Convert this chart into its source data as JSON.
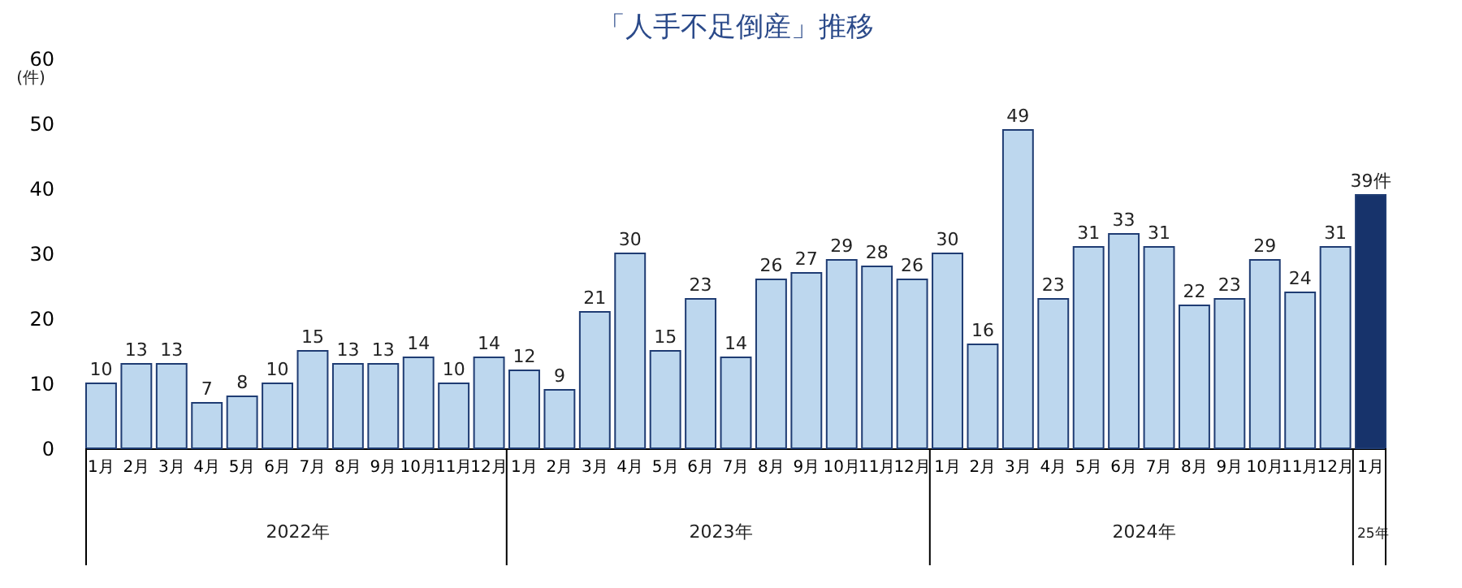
{
  "chart_data": {
    "type": "bar",
    "title": "「人手不足倒産」推移",
    "ylabel": "(件)",
    "categories": [
      "1月",
      "2月",
      "3月",
      "4月",
      "5月",
      "6月",
      "7月",
      "8月",
      "9月",
      "10月",
      "11月",
      "12月",
      "1月",
      "2月",
      "3月",
      "4月",
      "5月",
      "6月",
      "7月",
      "8月",
      "9月",
      "10月",
      "11月",
      "12月",
      "1月",
      "2月",
      "3月",
      "4月",
      "5月",
      "6月",
      "7月",
      "8月",
      "9月",
      "10月",
      "11月",
      "12月",
      "1月"
    ],
    "values": [
      10,
      13,
      13,
      7,
      8,
      10,
      15,
      13,
      13,
      14,
      10,
      14,
      12,
      9,
      21,
      30,
      15,
      23,
      14,
      26,
      27,
      29,
      28,
      26,
      30,
      16,
      49,
      23,
      31,
      33,
      31,
      22,
      23,
      29,
      24,
      31,
      39
    ],
    "value_labels": [
      "10",
      "13",
      "13",
      "7",
      "8",
      "10",
      "15",
      "13",
      "13",
      "14",
      "10",
      "14",
      "12",
      "9",
      "21",
      "30",
      "15",
      "23",
      "14",
      "26",
      "27",
      "29",
      "28",
      "26",
      "30",
      "16",
      "49",
      "23",
      "31",
      "33",
      "31",
      "22",
      "23",
      "29",
      "24",
      "31",
      "39件"
    ],
    "colors": [
      "#bdd7ee",
      "#bdd7ee",
      "#bdd7ee",
      "#bdd7ee",
      "#bdd7ee",
      "#bdd7ee",
      "#bdd7ee",
      "#bdd7ee",
      "#bdd7ee",
      "#bdd7ee",
      "#bdd7ee",
      "#bdd7ee",
      "#bdd7ee",
      "#bdd7ee",
      "#bdd7ee",
      "#bdd7ee",
      "#bdd7ee",
      "#bdd7ee",
      "#bdd7ee",
      "#bdd7ee",
      "#bdd7ee",
      "#bdd7ee",
      "#bdd7ee",
      "#bdd7ee",
      "#bdd7ee",
      "#bdd7ee",
      "#bdd7ee",
      "#bdd7ee",
      "#bdd7ee",
      "#bdd7ee",
      "#bdd7ee",
      "#bdd7ee",
      "#bdd7ee",
      "#bdd7ee",
      "#bdd7ee",
      "#bdd7ee",
      "#17336b"
    ],
    "ylim": [
      0,
      60
    ],
    "yticks": [
      0,
      10,
      20,
      30,
      40,
      50,
      60
    ],
    "grid": false,
    "legend": false,
    "annotations": [
      "2022年",
      "2023年",
      "2024年",
      "25年"
    ]
  }
}
